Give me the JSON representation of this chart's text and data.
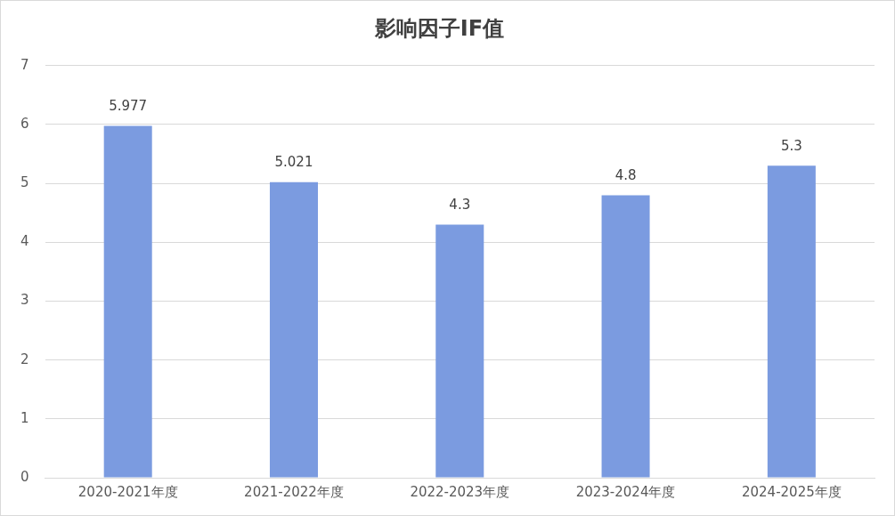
{
  "chart_data": {
    "type": "bar",
    "title": "影响因子IF值",
    "categories": [
      "2020-2021年度",
      "2021-2022年度",
      "2022-2023年度",
      "2023-2024年度",
      "2024-2025年度"
    ],
    "values": [
      5.977,
      5.021,
      4.3,
      4.8,
      5.3
    ],
    "color": "#7b9be0",
    "ylim": [
      0,
      7
    ],
    "yticks": [
      0,
      1,
      2,
      3,
      4,
      5,
      6,
      7
    ],
    "grid": "y",
    "data_labels": true
  }
}
